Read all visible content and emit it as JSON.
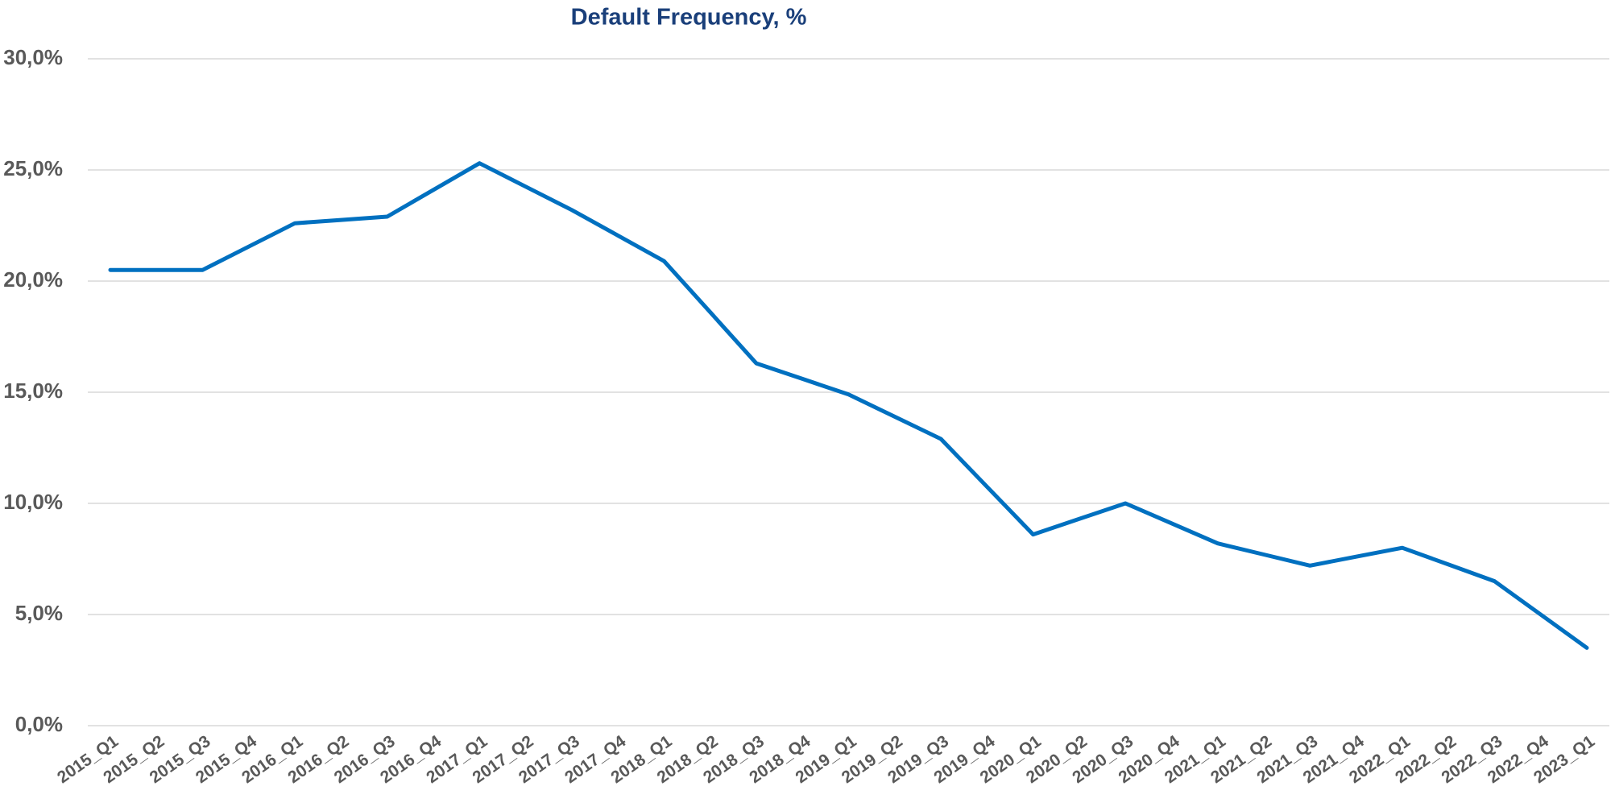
{
  "chart_data": {
    "type": "line",
    "title": "Default Frequency, %",
    "categories": [
      "2015_Q1",
      "2015_Q2",
      "2015_Q3",
      "2015_Q4",
      "2016_Q1",
      "2016_Q2",
      "2016_Q3",
      "2016_Q4",
      "2017_Q1",
      "2017_Q2",
      "2017_Q3",
      "2017_Q4",
      "2018_Q1",
      "2018_Q2",
      "2018_Q3",
      "2018_Q4",
      "2019_Q1",
      "2019_Q2",
      "2019_Q3",
      "2019_Q4",
      "2020_Q1",
      "2020_Q2",
      "2020_Q3",
      "2020_Q4",
      "2021_Q1",
      "2021_Q2",
      "2021_Q3",
      "2021_Q4",
      "2022_Q1",
      "2022_Q2",
      "2022_Q3",
      "2022_Q4",
      "2023_Q1"
    ],
    "series": [
      {
        "color": "#0070c0",
        "values": [
          20.5,
          20.5,
          20.5,
          21.55,
          22.6,
          22.75,
          22.9,
          24.1,
          25.3,
          24.25,
          23.2,
          22.05,
          20.9,
          18.6,
          16.3,
          15.6,
          14.9,
          13.9,
          12.9,
          10.75,
          8.6,
          9.3,
          10.0,
          9.1,
          8.2,
          7.7,
          7.2,
          7.6,
          8.0,
          7.25,
          6.5,
          5.0,
          3.5
        ]
      }
    ],
    "ylim": [
      0,
      30
    ],
    "yticks": [
      {
        "value": 0,
        "label": "0,0%"
      },
      {
        "value": 5,
        "label": "5,0%"
      },
      {
        "value": 10,
        "label": "10,0%"
      },
      {
        "value": 15,
        "label": "15,0%"
      },
      {
        "value": 20,
        "label": "20,0%"
      },
      {
        "value": 25,
        "label": "25,0%"
      },
      {
        "value": 30,
        "label": "30,0%"
      }
    ],
    "grid": true
  }
}
